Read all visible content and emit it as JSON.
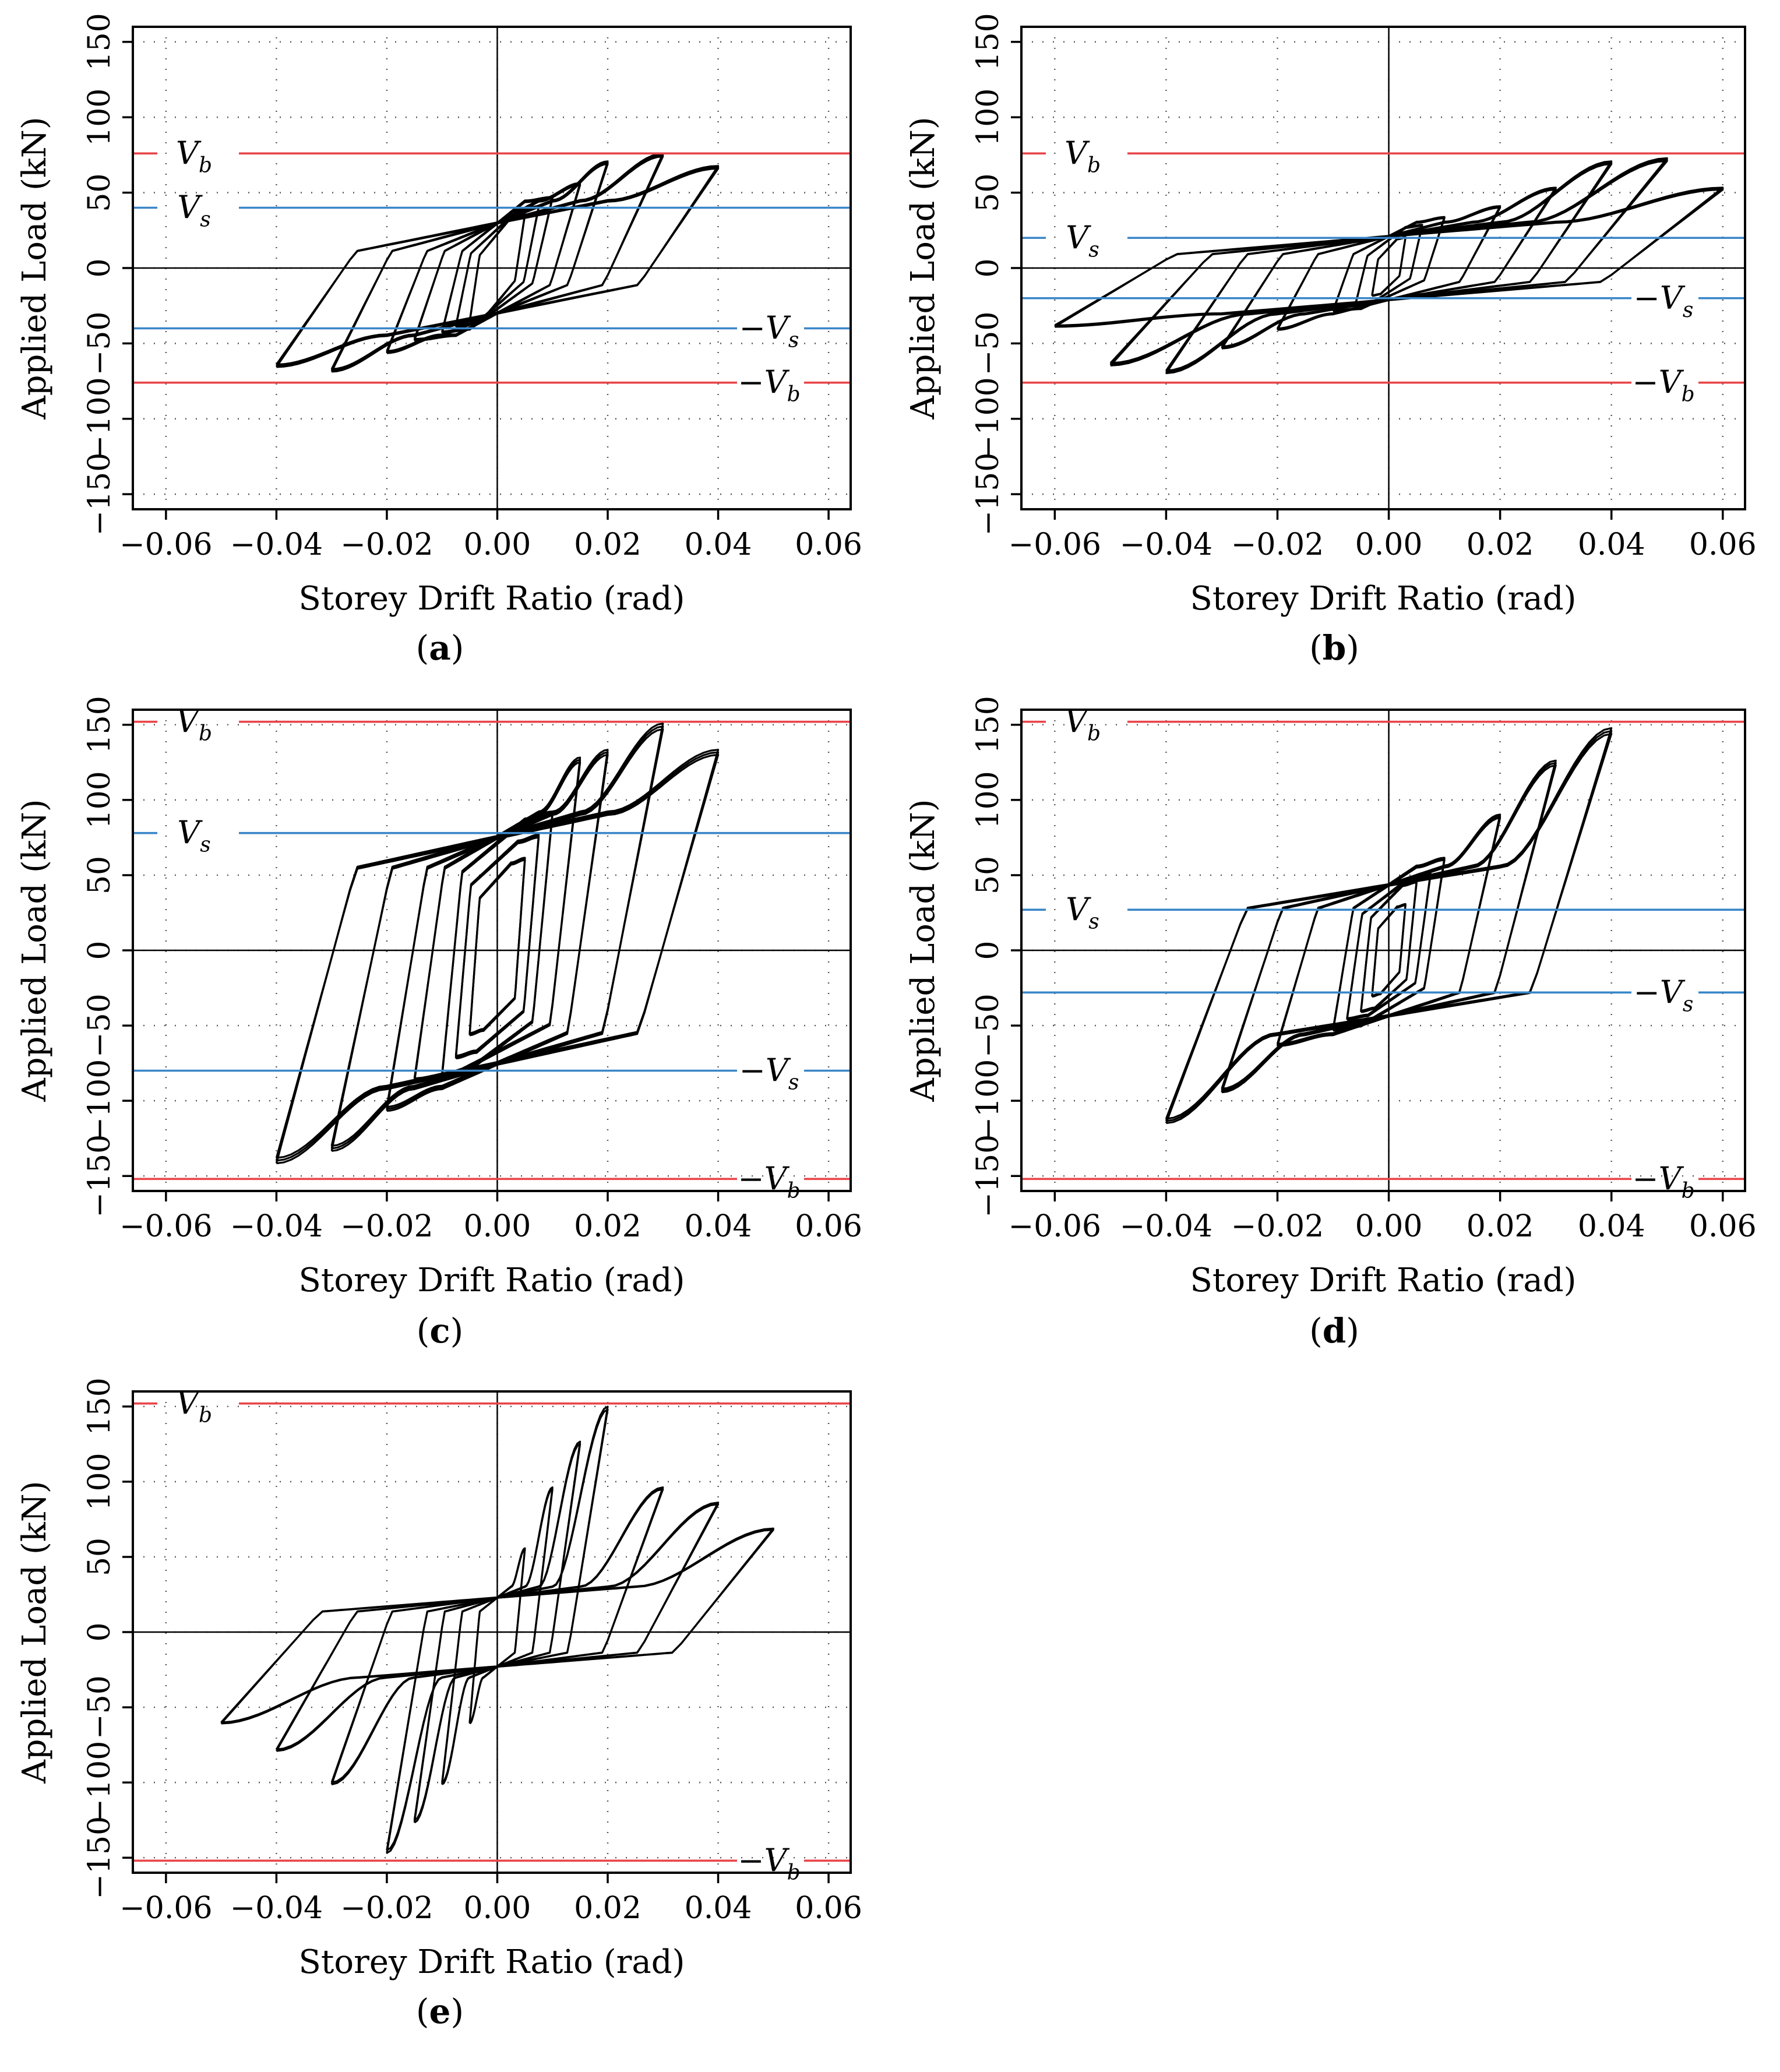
{
  "chart_data": [
    {
      "type": "line",
      "panel_label": "a",
      "xlabel": "Storey Drift Ratio (rad)",
      "ylabel": "Applied Load (kN)",
      "xlim": [
        -0.066,
        0.064
      ],
      "ylim": [
        -160,
        160
      ],
      "xticks": [
        -0.06,
        -0.04,
        -0.02,
        0.0,
        0.02,
        0.04,
        0.06
      ],
      "xtick_labels": [
        "−0.06",
        "−0.04",
        "−0.02",
        "0.00",
        "0.02",
        "0.04",
        "0.06"
      ],
      "yticks": [
        -150,
        -100,
        -50,
        0,
        50,
        100,
        150
      ],
      "ytick_labels": [
        "−150",
        "−100",
        "−50",
        "0",
        "50",
        "100",
        "150"
      ],
      "grid": true,
      "ref_lines": [
        {
          "name": "Vb",
          "label_sym": "V",
          "label_sub": "b",
          "negative": false,
          "value": 76,
          "color": "#e8454a"
        },
        {
          "name": "Vs",
          "label_sym": "V",
          "label_sub": "s",
          "negative": false,
          "value": 40,
          "color": "#3a86c8"
        },
        {
          "name": "-Vs",
          "label_sym": "V",
          "label_sub": "s",
          "negative": true,
          "value": -40,
          "color": "#3a86c8"
        },
        {
          "name": "-Vb",
          "label_sym": "V",
          "label_sub": "b",
          "negative": true,
          "value": -76,
          "color": "#e8454a"
        }
      ],
      "hysteresis": {
        "loops": [
          {
            "d": 0.005,
            "p": 35,
            "n": 35
          },
          {
            "d": 0.0075,
            "p": 40,
            "n": 38
          },
          {
            "d": 0.01,
            "p": 46,
            "n": 42
          },
          {
            "d": 0.015,
            "p": 55,
            "n": 47
          },
          {
            "d": 0.02,
            "p": 69,
            "n": 55
          },
          {
            "d": 0.03,
            "p": 74,
            "n": 67
          },
          {
            "d": 0.04,
            "p": 66,
            "n": 64
          }
        ],
        "pinch": 0.25,
        "plateau": 44,
        "repeats": 3
      }
    },
    {
      "type": "line",
      "panel_label": "b",
      "xlabel": "Storey Drift Ratio (rad)",
      "ylabel": "Applied Load (kN)",
      "xlim": [
        -0.066,
        0.064
      ],
      "ylim": [
        -160,
        160
      ],
      "xticks": [
        -0.06,
        -0.04,
        -0.02,
        0.0,
        0.02,
        0.04,
        0.06
      ],
      "xtick_labels": [
        "−0.06",
        "−0.04",
        "−0.02",
        "0.00",
        "0.02",
        "0.04",
        "0.06"
      ],
      "yticks": [
        -150,
        -100,
        -50,
        0,
        50,
        100,
        150
      ],
      "ytick_labels": [
        "−150",
        "−100",
        "−50",
        "0",
        "50",
        "100",
        "150"
      ],
      "grid": true,
      "ref_lines": [
        {
          "name": "Vb",
          "label_sym": "V",
          "label_sub": "b",
          "negative": false,
          "value": 76,
          "color": "#e8454a"
        },
        {
          "name": "Vs",
          "label_sym": "V",
          "label_sub": "s",
          "negative": false,
          "value": 20,
          "color": "#3a86c8"
        },
        {
          "name": "-Vs",
          "label_sym": "V",
          "label_sub": "s",
          "negative": true,
          "value": -20,
          "color": "#3a86c8"
        },
        {
          "name": "-Vb",
          "label_sym": "V",
          "label_sub": "b",
          "negative": true,
          "value": -76,
          "color": "#e8454a"
        }
      ],
      "hysteresis": {
        "loops": [
          {
            "d": 0.003,
            "p": 20,
            "n": 18
          },
          {
            "d": 0.006,
            "p": 28,
            "n": 24
          },
          {
            "d": 0.01,
            "p": 33,
            "n": 28
          },
          {
            "d": 0.02,
            "p": 40,
            "n": 40
          },
          {
            "d": 0.03,
            "p": 52,
            "n": 52
          },
          {
            "d": 0.04,
            "p": 69,
            "n": 68
          },
          {
            "d": 0.05,
            "p": 71,
            "n": 63
          },
          {
            "d": 0.06,
            "p": 52,
            "n": 38
          }
        ],
        "pinch": 0.3,
        "plateau": 30,
        "repeats": 3
      }
    },
    {
      "type": "line",
      "panel_label": "c",
      "xlabel": "Storey Drift Ratio (rad)",
      "ylabel": "Applied Load (kN)",
      "xlim": [
        -0.066,
        0.064
      ],
      "ylim": [
        -160,
        160
      ],
      "xticks": [
        -0.06,
        -0.04,
        -0.02,
        0.0,
        0.02,
        0.04,
        0.06
      ],
      "xtick_labels": [
        "−0.06",
        "−0.04",
        "−0.02",
        "0.00",
        "0.02",
        "0.04",
        "0.06"
      ],
      "yticks": [
        -150,
        -100,
        -50,
        0,
        50,
        100,
        150
      ],
      "ytick_labels": [
        "−150",
        "−100",
        "−50",
        "0",
        "50",
        "100",
        "150"
      ],
      "grid": true,
      "ref_lines": [
        {
          "name": "Vb",
          "label_sym": "V",
          "label_sub": "b",
          "negative": false,
          "value": 152,
          "color": "#e8454a"
        },
        {
          "name": "Vs",
          "label_sym": "V",
          "label_sub": "s",
          "negative": false,
          "value": 78,
          "color": "#3a86c8"
        },
        {
          "name": "-Vs",
          "label_sym": "V",
          "label_sub": "s",
          "negative": true,
          "value": -80,
          "color": "#3a86c8"
        },
        {
          "name": "-Vb",
          "label_sym": "V",
          "label_sub": "b",
          "negative": true,
          "value": -152,
          "color": "#e8454a"
        }
      ],
      "hysteresis": {
        "loops": [
          {
            "d": 0.005,
            "p": 60,
            "n": 55
          },
          {
            "d": 0.0075,
            "p": 75,
            "n": 70
          },
          {
            "d": 0.01,
            "p": 90,
            "n": 82
          },
          {
            "d": 0.015,
            "p": 125,
            "n": 85
          },
          {
            "d": 0.02,
            "p": 130,
            "n": 104
          },
          {
            "d": 0.03,
            "p": 147,
            "n": 130
          },
          {
            "d": 0.04,
            "p": 130,
            "n": 138
          }
        ],
        "pinch": 0.6,
        "plateau": 90,
        "repeats": 3
      }
    },
    {
      "type": "line",
      "panel_label": "d",
      "xlabel": "Storey Drift Ratio (rad)",
      "ylabel": "Applied Load (kN)",
      "xlim": [
        -0.066,
        0.064
      ],
      "ylim": [
        -160,
        160
      ],
      "xticks": [
        -0.06,
        -0.04,
        -0.02,
        0.0,
        0.02,
        0.04,
        0.06
      ],
      "xtick_labels": [
        "−0.06",
        "−0.04",
        "−0.02",
        "0.00",
        "0.02",
        "0.04",
        "0.06"
      ],
      "yticks": [
        -150,
        -100,
        -50,
        0,
        50,
        100,
        150
      ],
      "ytick_labels": [
        "−150",
        "−100",
        "−50",
        "0",
        "50",
        "100",
        "150"
      ],
      "grid": true,
      "ref_lines": [
        {
          "name": "Vb",
          "label_sym": "V",
          "label_sub": "b",
          "negative": false,
          "value": 152,
          "color": "#e8454a"
        },
        {
          "name": "Vs",
          "label_sym": "V",
          "label_sub": "s",
          "negative": false,
          "value": 27,
          "color": "#3a86c8"
        },
        {
          "name": "-Vs",
          "label_sym": "V",
          "label_sub": "s",
          "negative": true,
          "value": -28,
          "color": "#3a86c8"
        },
        {
          "name": "-Vb",
          "label_sym": "V",
          "label_sub": "b",
          "negative": true,
          "value": -152,
          "color": "#e8454a"
        }
      ],
      "hysteresis": {
        "loops": [
          {
            "d": 0.003,
            "p": 30,
            "n": 30
          },
          {
            "d": 0.005,
            "p": 45,
            "n": 40
          },
          {
            "d": 0.0075,
            "p": 50,
            "n": 45
          },
          {
            "d": 0.01,
            "p": 60,
            "n": 52
          },
          {
            "d": 0.02,
            "p": 88,
            "n": 62
          },
          {
            "d": 0.03,
            "p": 123,
            "n": 92
          },
          {
            "d": 0.04,
            "p": 144,
            "n": 112
          }
        ],
        "pinch": 0.5,
        "plateau": 55,
        "repeats": 3
      }
    },
    {
      "type": "line",
      "panel_label": "e",
      "xlabel": "Storey Drift Ratio (rad)",
      "ylabel": "Applied Load (kN)",
      "xlim": [
        -0.066,
        0.064
      ],
      "ylim": [
        -160,
        160
      ],
      "xticks": [
        -0.06,
        -0.04,
        -0.02,
        0.0,
        0.02,
        0.04,
        0.06
      ],
      "xtick_labels": [
        "−0.06",
        "−0.04",
        "−0.02",
        "0.00",
        "0.02",
        "0.04",
        "0.06"
      ],
      "yticks": [
        -150,
        -100,
        -50,
        0,
        50,
        100,
        150
      ],
      "ytick_labels": [
        "−150",
        "−100",
        "−50",
        "0",
        "50",
        "100",
        "150"
      ],
      "grid": true,
      "ref_lines": [
        {
          "name": "Vb",
          "label_sym": "V",
          "label_sub": "b",
          "negative": false,
          "value": 152,
          "color": "#e8454a"
        },
        {
          "name": "-Vb",
          "label_sym": "V",
          "label_sub": "b",
          "negative": true,
          "value": -152,
          "color": "#e8454a"
        }
      ],
      "hysteresis": {
        "loops": [
          {
            "d": 0.005,
            "p": 55,
            "n": 60
          },
          {
            "d": 0.01,
            "p": 95,
            "n": 100
          },
          {
            "d": 0.015,
            "p": 125,
            "n": 125
          },
          {
            "d": 0.02,
            "p": 148,
            "n": 145
          },
          {
            "d": 0.03,
            "p": 95,
            "n": 100
          },
          {
            "d": 0.04,
            "p": 85,
            "n": 78
          },
          {
            "d": 0.05,
            "p": 68,
            "n": 60
          }
        ],
        "pinch": 0.45,
        "plateau": 30,
        "repeats": 2
      }
    }
  ]
}
